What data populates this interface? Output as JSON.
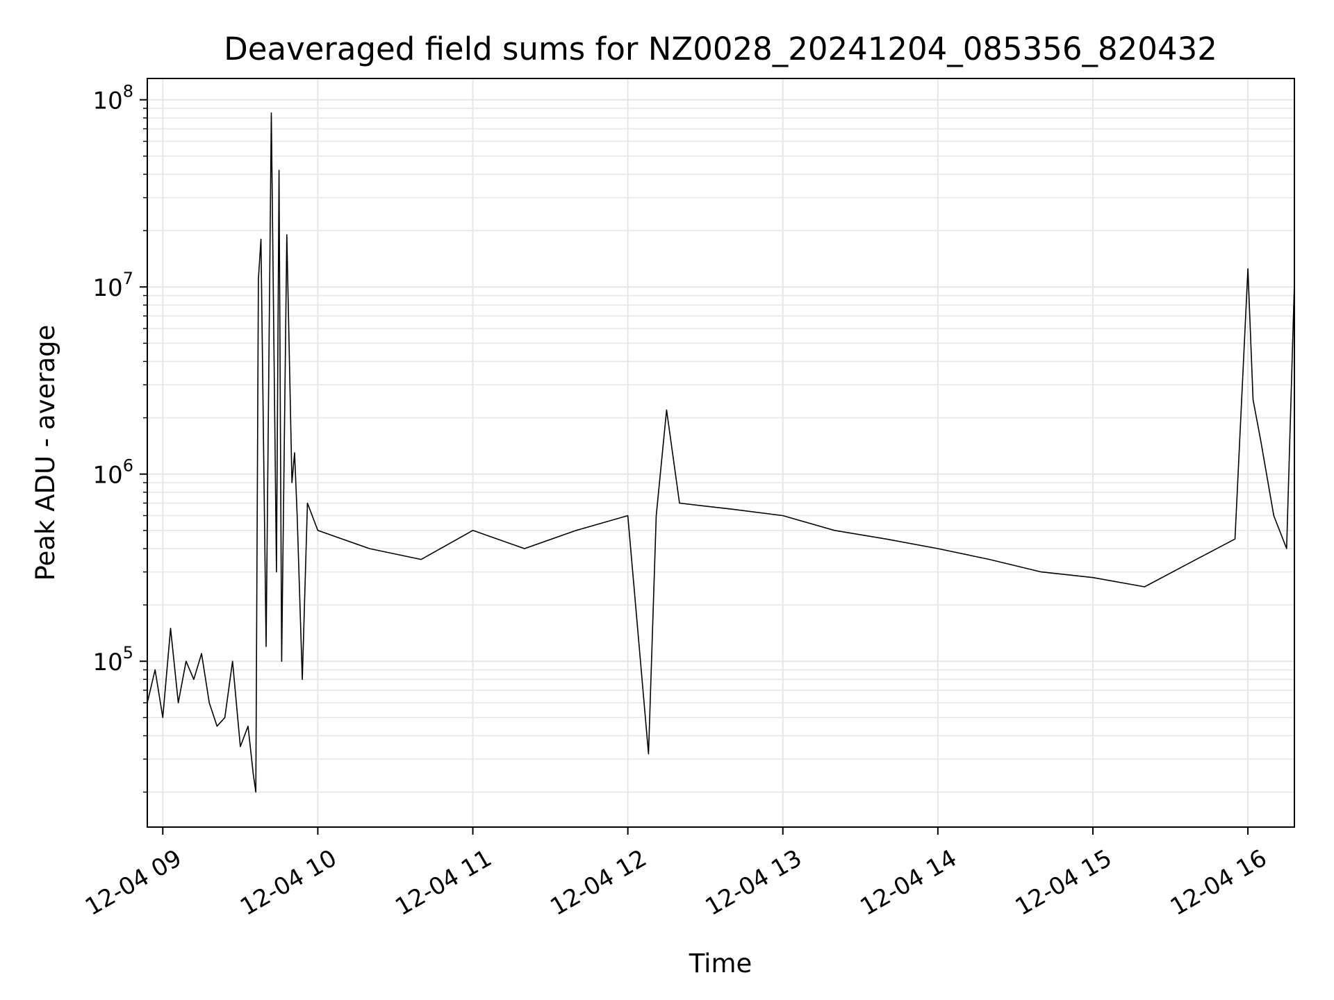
{
  "chart_data": {
    "type": "line",
    "title": "Deaveraged field sums for NZ0028_20241204_085356_820432",
    "xlabel": "Time",
    "ylabel": "Peak ADU - average",
    "y_scale": "log",
    "ylim": [
      13000,
      130000000
    ],
    "xlim": [
      "2024-12-04 08:54",
      "2024-12-04 16:18"
    ],
    "x_ticks": [
      "12-04 09",
      "12-04 10",
      "12-04 11",
      "12-04 12",
      "12-04 13",
      "12-04 14",
      "12-04 15",
      "12-04 16"
    ],
    "y_ticks": [
      {
        "base": "10",
        "exp": "5",
        "value": 100000
      },
      {
        "base": "10",
        "exp": "6",
        "value": 1000000
      },
      {
        "base": "10",
        "exp": "7",
        "value": 10000000
      },
      {
        "base": "10",
        "exp": "8",
        "value": 100000000
      }
    ],
    "grid": true,
    "line_color": "#000000",
    "series": [
      {
        "x": [
          "2024-12-04 08:54",
          "2024-12-04 08:57",
          "2024-12-04 09:00",
          "2024-12-04 09:03",
          "2024-12-04 09:06",
          "2024-12-04 09:09",
          "2024-12-04 09:12",
          "2024-12-04 09:15",
          "2024-12-04 09:18",
          "2024-12-04 09:21",
          "2024-12-04 09:24",
          "2024-12-04 09:27",
          "2024-12-04 09:30",
          "2024-12-04 09:33",
          "2024-12-04 09:35",
          "2024-12-04 09:36",
          "2024-12-04 09:37",
          "2024-12-04 09:38",
          "2024-12-04 09:40",
          "2024-12-04 09:42",
          "2024-12-04 09:44",
          "2024-12-04 09:45",
          "2024-12-04 09:46",
          "2024-12-04 09:48",
          "2024-12-04 09:50",
          "2024-12-04 09:51",
          "2024-12-04 09:52",
          "2024-12-04 09:54",
          "2024-12-04 09:56",
          "2024-12-04 10:00",
          "2024-12-04 10:20",
          "2024-12-04 10:40",
          "2024-12-04 11:00",
          "2024-12-04 11:20",
          "2024-12-04 11:40",
          "2024-12-04 12:00",
          "2024-12-04 12:08",
          "2024-12-04 12:11",
          "2024-12-04 12:15",
          "2024-12-04 12:20",
          "2024-12-04 12:40",
          "2024-12-04 13:00",
          "2024-12-04 13:20",
          "2024-12-04 13:40",
          "2024-12-04 14:00",
          "2024-12-04 14:20",
          "2024-12-04 14:40",
          "2024-12-04 15:00",
          "2024-12-04 15:20",
          "2024-12-04 15:40",
          "2024-12-04 15:55",
          "2024-12-04 16:00",
          "2024-12-04 16:02",
          "2024-12-04 16:05",
          "2024-12-04 16:10",
          "2024-12-04 16:15",
          "2024-12-04 16:18"
        ],
        "y": [
          60000,
          90000,
          50000,
          150000,
          60000,
          100000,
          80000,
          110000,
          60000,
          45000,
          50000,
          100000,
          35000,
          45000,
          25000,
          20000,
          11000000,
          18000000,
          120000,
          85000000,
          300000,
          42000000,
          100000,
          19000000,
          900000,
          1300000,
          600000,
          80000,
          700000,
          500000,
          400000,
          350000,
          500000,
          400000,
          500000,
          600000,
          32000,
          600000,
          2200000,
          700000,
          650000,
          600000,
          500000,
          450000,
          400000,
          350000,
          300000,
          280000,
          250000,
          350000,
          450000,
          12500000,
          2500000,
          1500000,
          600000,
          400000,
          10500000
        ]
      }
    ]
  }
}
